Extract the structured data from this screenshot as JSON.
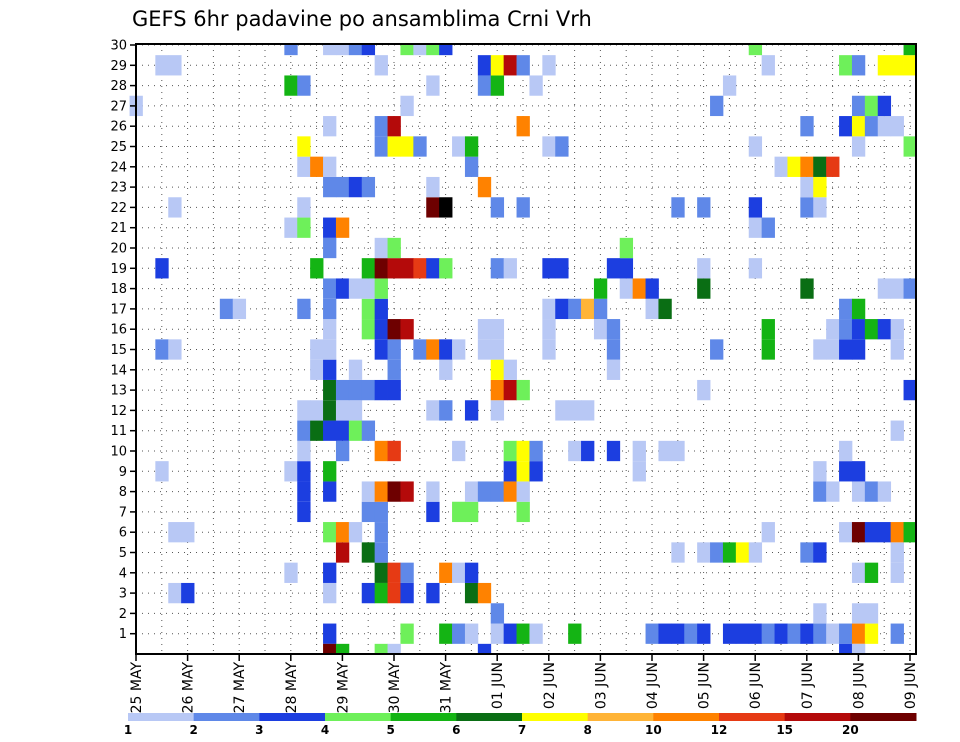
{
  "chart_data": {
    "type": "heatmap",
    "title": "GEFS 6hr padavine po ansamblima Crni Vrh",
    "ylim": [
      0,
      30
    ],
    "y_ticks": [
      "1",
      "2",
      "3",
      "4",
      "5",
      "6",
      "7",
      "8",
      "9",
      "10",
      "11",
      "12",
      "13",
      "14",
      "15",
      "16",
      "17",
      "18",
      "19",
      "20",
      "21",
      "22",
      "23",
      "24",
      "25",
      "26",
      "27",
      "28",
      "29",
      "30"
    ],
    "x_ticks": [
      "25 MAY",
      "26 MAY",
      "27 MAY",
      "28 MAY",
      "29 MAY",
      "30 MAY",
      "31 MAY",
      "01 JUN",
      "02 JUN",
      "03 JUN",
      "04 JUN",
      "05 JUN",
      "06 JUN",
      "07 JUN",
      "08 JUN",
      "09 JUN"
    ],
    "steps_per_day": 4,
    "n_steps": 61,
    "colorbar": {
      "thresholds": [
        "1",
        "2",
        "3",
        "4",
        "5",
        "6",
        "7",
        "8",
        "10",
        "12",
        "15",
        "20"
      ],
      "colors": [
        "#b8c8f5",
        "#5f88e8",
        "#1c3ee0",
        "#6ef05a",
        "#14b414",
        "#0a6e14",
        "#ffff00",
        "#ffb437",
        "#ff8200",
        "#e63a14",
        "#b40a0a",
        "#6e0000"
      ]
    },
    "cells": [
      [
        1,
        15,
        3
      ],
      [
        1,
        21,
        4
      ],
      [
        1,
        24,
        5
      ],
      [
        1,
        25,
        2
      ],
      [
        1,
        26,
        1
      ],
      [
        1,
        28,
        1
      ],
      [
        1,
        29,
        3
      ],
      [
        1,
        30,
        5
      ],
      [
        1,
        31,
        1
      ],
      [
        1,
        34,
        5
      ],
      [
        1,
        40,
        2
      ],
      [
        1,
        41,
        3
      ],
      [
        1,
        42,
        3
      ],
      [
        1,
        43,
        2
      ],
      [
        1,
        44,
        3
      ],
      [
        1,
        46,
        3
      ],
      [
        1,
        47,
        3
      ],
      [
        1,
        48,
        3
      ],
      [
        1,
        49,
        2
      ],
      [
        1,
        50,
        3
      ],
      [
        1,
        51,
        2
      ],
      [
        1,
        52,
        3
      ],
      [
        1,
        53,
        2
      ],
      [
        1,
        54,
        1
      ],
      [
        1,
        55,
        2
      ],
      [
        1,
        56,
        9
      ],
      [
        1,
        57,
        7
      ],
      [
        1,
        59,
        2
      ],
      [
        2,
        28,
        2
      ],
      [
        2,
        53,
        1
      ],
      [
        2,
        56,
        1
      ],
      [
        2,
        57,
        1
      ],
      [
        3,
        3,
        1
      ],
      [
        3,
        4,
        3
      ],
      [
        3,
        15,
        1
      ],
      [
        3,
        18,
        3
      ],
      [
        3,
        19,
        5
      ],
      [
        3,
        20,
        10
      ],
      [
        3,
        21,
        3
      ],
      [
        3,
        23,
        3
      ],
      [
        3,
        26,
        6
      ],
      [
        3,
        27,
        9
      ],
      [
        4,
        12,
        1
      ],
      [
        4,
        15,
        3
      ],
      [
        4,
        19,
        6
      ],
      [
        4,
        20,
        10
      ],
      [
        4,
        21,
        2
      ],
      [
        4,
        24,
        9
      ],
      [
        4,
        25,
        1
      ],
      [
        4,
        26,
        3
      ],
      [
        4,
        56,
        1
      ],
      [
        4,
        57,
        5
      ],
      [
        4,
        59,
        1
      ],
      [
        5,
        16,
        11
      ],
      [
        5,
        18,
        6
      ],
      [
        5,
        19,
        2
      ],
      [
        5,
        42,
        1
      ],
      [
        5,
        44,
        1
      ],
      [
        5,
        45,
        2
      ],
      [
        5,
        46,
        5
      ],
      [
        5,
        47,
        7
      ],
      [
        5,
        48,
        1
      ],
      [
        5,
        52,
        2
      ],
      [
        5,
        53,
        3
      ],
      [
        5,
        59,
        1
      ],
      [
        6,
        3,
        1
      ],
      [
        6,
        4,
        1
      ],
      [
        6,
        15,
        4
      ],
      [
        6,
        16,
        9
      ],
      [
        6,
        17,
        1
      ],
      [
        6,
        19,
        2
      ],
      [
        6,
        49,
        1
      ],
      [
        6,
        55,
        1
      ],
      [
        6,
        56,
        12
      ],
      [
        6,
        57,
        3
      ],
      [
        6,
        58,
        3
      ],
      [
        6,
        59,
        9
      ],
      [
        6,
        60,
        5
      ],
      [
        7,
        13,
        3
      ],
      [
        7,
        18,
        2
      ],
      [
        7,
        19,
        2
      ],
      [
        7,
        23,
        3
      ],
      [
        7,
        25,
        4
      ],
      [
        7,
        26,
        4
      ],
      [
        7,
        30,
        4
      ],
      [
        8,
        13,
        3
      ],
      [
        8,
        15,
        3
      ],
      [
        8,
        18,
        1
      ],
      [
        8,
        19,
        9
      ],
      [
        8,
        20,
        12
      ],
      [
        8,
        21,
        11
      ],
      [
        8,
        23,
        1
      ],
      [
        8,
        26,
        1
      ],
      [
        8,
        27,
        2
      ],
      [
        8,
        28,
        2
      ],
      [
        8,
        29,
        9
      ],
      [
        8,
        30,
        1
      ],
      [
        8,
        53,
        2
      ],
      [
        8,
        54,
        1
      ],
      [
        8,
        56,
        1
      ],
      [
        8,
        57,
        2
      ],
      [
        8,
        58,
        1
      ],
      [
        9,
        2,
        1
      ],
      [
        9,
        12,
        1
      ],
      [
        9,
        13,
        3
      ],
      [
        9,
        15,
        5
      ],
      [
        9,
        29,
        3
      ],
      [
        9,
        30,
        7
      ],
      [
        9,
        31,
        3
      ],
      [
        9,
        39,
        1
      ],
      [
        9,
        53,
        1
      ],
      [
        9,
        55,
        3
      ],
      [
        9,
        56,
        3
      ],
      [
        10,
        13,
        1
      ],
      [
        10,
        16,
        2
      ],
      [
        10,
        19,
        9
      ],
      [
        10,
        20,
        10
      ],
      [
        10,
        25,
        1
      ],
      [
        10,
        29,
        4
      ],
      [
        10,
        30,
        7
      ],
      [
        10,
        31,
        2
      ],
      [
        10,
        34,
        1
      ],
      [
        10,
        35,
        3
      ],
      [
        10,
        37,
        3
      ],
      [
        10,
        39,
        1
      ],
      [
        10,
        41,
        1
      ],
      [
        10,
        42,
        1
      ],
      [
        10,
        55,
        1
      ],
      [
        11,
        13,
        2
      ],
      [
        11,
        14,
        6
      ],
      [
        11,
        15,
        3
      ],
      [
        11,
        16,
        3
      ],
      [
        11,
        17,
        4
      ],
      [
        11,
        18,
        2
      ],
      [
        11,
        59,
        1
      ],
      [
        12,
        13,
        1
      ],
      [
        12,
        14,
        1
      ],
      [
        12,
        15,
        6
      ],
      [
        12,
        16,
        1
      ],
      [
        12,
        17,
        1
      ],
      [
        12,
        23,
        1
      ],
      [
        12,
        24,
        2
      ],
      [
        12,
        26,
        3
      ],
      [
        12,
        28,
        1
      ],
      [
        12,
        33,
        1
      ],
      [
        12,
        34,
        1
      ],
      [
        12,
        35,
        1
      ],
      [
        13,
        15,
        6
      ],
      [
        13,
        16,
        2
      ],
      [
        13,
        17,
        2
      ],
      [
        13,
        18,
        2
      ],
      [
        13,
        19,
        3
      ],
      [
        13,
        20,
        3
      ],
      [
        13,
        28,
        9
      ],
      [
        13,
        29,
        11
      ],
      [
        13,
        30,
        4
      ],
      [
        13,
        44,
        1
      ],
      [
        13,
        60,
        3
      ],
      [
        14,
        14,
        1
      ],
      [
        14,
        15,
        3
      ],
      [
        14,
        17,
        1
      ],
      [
        14,
        20,
        2
      ],
      [
        14,
        24,
        1
      ],
      [
        14,
        28,
        7
      ],
      [
        14,
        29,
        1
      ],
      [
        14,
        37,
        1
      ],
      [
        15,
        2,
        2
      ],
      [
        15,
        3,
        1
      ],
      [
        15,
        14,
        1
      ],
      [
        15,
        15,
        1
      ],
      [
        15,
        19,
        3
      ],
      [
        15,
        20,
        2
      ],
      [
        15,
        22,
        2
      ],
      [
        15,
        23,
        9
      ],
      [
        15,
        24,
        3
      ],
      [
        15,
        25,
        1
      ],
      [
        15,
        27,
        1
      ],
      [
        15,
        28,
        1
      ],
      [
        15,
        32,
        1
      ],
      [
        15,
        37,
        2
      ],
      [
        15,
        45,
        2
      ],
      [
        15,
        49,
        5
      ],
      [
        15,
        53,
        1
      ],
      [
        15,
        54,
        1
      ],
      [
        15,
        55,
        3
      ],
      [
        15,
        56,
        3
      ],
      [
        15,
        59,
        1
      ],
      [
        16,
        15,
        1
      ],
      [
        16,
        18,
        4
      ],
      [
        16,
        19,
        3
      ],
      [
        16,
        20,
        12
      ],
      [
        16,
        21,
        11
      ],
      [
        16,
        27,
        1
      ],
      [
        16,
        28,
        1
      ],
      [
        16,
        32,
        1
      ],
      [
        16,
        36,
        1
      ],
      [
        16,
        37,
        2
      ],
      [
        16,
        49,
        5
      ],
      [
        16,
        54,
        1
      ],
      [
        16,
        55,
        2
      ],
      [
        16,
        56,
        3
      ],
      [
        16,
        57,
        5
      ],
      [
        16,
        58,
        3
      ],
      [
        16,
        59,
        1
      ],
      [
        17,
        7,
        2
      ],
      [
        17,
        8,
        1
      ],
      [
        17,
        13,
        2
      ],
      [
        17,
        15,
        2
      ],
      [
        17,
        18,
        4
      ],
      [
        17,
        19,
        3
      ],
      [
        17,
        32,
        1
      ],
      [
        17,
        33,
        3
      ],
      [
        17,
        34,
        2
      ],
      [
        17,
        35,
        8
      ],
      [
        17,
        36,
        2
      ],
      [
        17,
        40,
        1
      ],
      [
        17,
        41,
        6
      ],
      [
        17,
        55,
        2
      ],
      [
        17,
        56,
        5
      ],
      [
        18,
        15,
        2
      ],
      [
        18,
        16,
        3
      ],
      [
        18,
        17,
        1
      ],
      [
        18,
        18,
        1
      ],
      [
        18,
        19,
        4
      ],
      [
        18,
        36,
        5
      ],
      [
        18,
        38,
        1
      ],
      [
        18,
        39,
        9
      ],
      [
        18,
        40,
        3
      ],
      [
        18,
        44,
        6
      ],
      [
        18,
        52,
        6
      ],
      [
        18,
        58,
        1
      ],
      [
        18,
        59,
        1
      ],
      [
        18,
        60,
        2
      ],
      [
        19,
        2,
        3
      ],
      [
        19,
        14,
        5
      ],
      [
        19,
        18,
        5
      ],
      [
        19,
        19,
        12
      ],
      [
        19,
        20,
        11
      ],
      [
        19,
        21,
        11
      ],
      [
        19,
        22,
        10
      ],
      [
        19,
        23,
        3
      ],
      [
        19,
        24,
        4
      ],
      [
        19,
        28,
        2
      ],
      [
        19,
        29,
        1
      ],
      [
        19,
        32,
        3
      ],
      [
        19,
        33,
        3
      ],
      [
        19,
        37,
        3
      ],
      [
        19,
        38,
        3
      ],
      [
        19,
        44,
        1
      ],
      [
        19,
        48,
        1
      ],
      [
        20,
        15,
        2
      ],
      [
        20,
        19,
        1
      ],
      [
        20,
        20,
        4
      ],
      [
        20,
        38,
        4
      ],
      [
        21,
        12,
        1
      ],
      [
        21,
        13,
        4
      ],
      [
        21,
        15,
        3
      ],
      [
        21,
        16,
        9
      ],
      [
        21,
        48,
        1
      ],
      [
        21,
        49,
        2
      ],
      [
        22,
        3,
        1
      ],
      [
        22,
        13,
        1
      ],
      [
        22,
        23,
        12
      ],
      [
        22,
        24,
        13
      ],
      [
        22,
        28,
        2
      ],
      [
        22,
        30,
        2
      ],
      [
        22,
        42,
        2
      ],
      [
        22,
        44,
        2
      ],
      [
        22,
        48,
        3
      ],
      [
        22,
        52,
        2
      ],
      [
        22,
        53,
        1
      ],
      [
        23,
        15,
        2
      ],
      [
        23,
        16,
        2
      ],
      [
        23,
        17,
        3
      ],
      [
        23,
        18,
        2
      ],
      [
        23,
        23,
        1
      ],
      [
        23,
        27,
        9
      ],
      [
        23,
        52,
        1
      ],
      [
        23,
        53,
        7
      ],
      [
        24,
        13,
        1
      ],
      [
        24,
        14,
        9
      ],
      [
        24,
        15,
        1
      ],
      [
        24,
        26,
        2
      ],
      [
        24,
        50,
        1
      ],
      [
        24,
        51,
        7
      ],
      [
        24,
        52,
        9
      ],
      [
        24,
        53,
        6
      ],
      [
        24,
        54,
        10
      ],
      [
        25,
        13,
        7
      ],
      [
        25,
        19,
        2
      ],
      [
        25,
        20,
        7
      ],
      [
        25,
        21,
        7
      ],
      [
        25,
        22,
        2
      ],
      [
        25,
        25,
        1
      ],
      [
        25,
        26,
        5
      ],
      [
        25,
        32,
        1
      ],
      [
        25,
        33,
        2
      ],
      [
        25,
        48,
        1
      ],
      [
        25,
        56,
        1
      ],
      [
        25,
        60,
        4
      ],
      [
        26,
        15,
        1
      ],
      [
        26,
        19,
        2
      ],
      [
        26,
        20,
        11
      ],
      [
        26,
        30,
        9
      ],
      [
        26,
        52,
        2
      ],
      [
        26,
        55,
        3
      ],
      [
        26,
        56,
        7
      ],
      [
        26,
        57,
        2
      ],
      [
        26,
        58,
        1
      ],
      [
        26,
        59,
        1
      ],
      [
        27,
        0,
        1
      ],
      [
        27,
        21,
        1
      ],
      [
        27,
        45,
        2
      ],
      [
        27,
        56,
        2
      ],
      [
        27,
        57,
        4
      ],
      [
        27,
        58,
        3
      ],
      [
        28,
        12,
        5
      ],
      [
        28,
        13,
        2
      ],
      [
        28,
        23,
        1
      ],
      [
        28,
        27,
        2
      ],
      [
        28,
        28,
        5
      ],
      [
        28,
        31,
        1
      ],
      [
        28,
        46,
        1
      ],
      [
        29,
        2,
        1
      ],
      [
        29,
        3,
        1
      ],
      [
        29,
        19,
        1
      ],
      [
        29,
        27,
        3
      ],
      [
        29,
        28,
        7
      ],
      [
        29,
        29,
        11
      ],
      [
        29,
        30,
        2
      ],
      [
        29,
        32,
        1
      ],
      [
        29,
        49,
        1
      ],
      [
        29,
        55,
        4
      ],
      [
        29,
        56,
        2
      ],
      [
        29,
        58,
        7
      ],
      [
        29,
        59,
        7
      ],
      [
        29,
        60,
        7
      ],
      [
        30,
        12,
        2
      ],
      [
        30,
        15,
        1
      ],
      [
        30,
        16,
        1
      ],
      [
        30,
        17,
        2
      ],
      [
        30,
        18,
        3
      ],
      [
        30,
        21,
        4
      ],
      [
        30,
        22,
        1
      ],
      [
        30,
        23,
        4
      ],
      [
        30,
        24,
        3
      ],
      [
        30,
        48,
        4
      ],
      [
        30,
        60,
        5
      ],
      [
        0,
        15,
        12
      ],
      [
        0,
        16,
        5
      ],
      [
        0,
        19,
        4
      ],
      [
        0,
        20,
        1
      ],
      [
        0,
        27,
        3
      ],
      [
        0,
        55,
        3
      ],
      [
        0,
        56,
        1
      ]
    ]
  }
}
